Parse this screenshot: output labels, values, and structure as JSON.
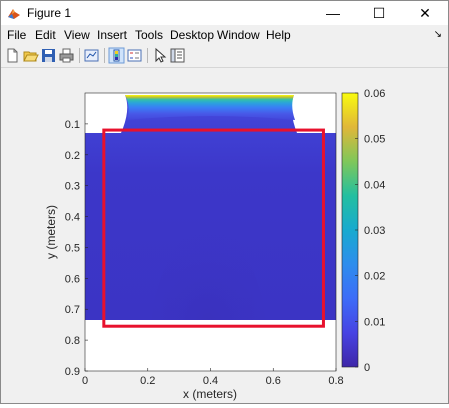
{
  "window": {
    "title": "Figure 1",
    "controls": {
      "minimize": "—",
      "maximize": "☐",
      "close": "✕"
    }
  },
  "menu": {
    "items": [
      "File",
      "Edit",
      "View",
      "Insert",
      "Tools",
      "Desktop",
      "Window",
      "Help"
    ],
    "dock_arrow": "↘"
  },
  "toolbar": {
    "icons": [
      "new-figure-icon",
      "open-file-icon",
      "save-icon",
      "print-icon",
      "link-plot-icon",
      "insert-colorbar-icon",
      "insert-legend-icon",
      "edit-plot-icon",
      "property-inspector-icon"
    ]
  },
  "chart_data": {
    "type": "heatmap",
    "xlabel": "x (meters)",
    "ylabel": "y (meters)",
    "xlim": [
      0,
      0.8
    ],
    "ylim": [
      0.9,
      0
    ],
    "x_ticks": [
      "0",
      "0.2",
      "0.4",
      "0.6",
      "0.8"
    ],
    "y_ticks": [
      "0.1",
      "0.2",
      "0.3",
      "0.4",
      "0.5",
      "0.6",
      "0.7",
      "0.8",
      "0.9"
    ],
    "colorbar": {
      "min": 0,
      "max": 0.06,
      "ticks": [
        "0",
        "0.01",
        "0.02",
        "0.03",
        "0.04",
        "0.05",
        "0.06"
      ],
      "colormap": "parula"
    },
    "highlight_rect": {
      "x0": 0.06,
      "x1": 0.76,
      "y0": 0.12,
      "y1": 0.755,
      "color": "#e8112d"
    },
    "colors": {
      "background_field": "#3d35c8",
      "high": "#f9fb0e",
      "low": "#3e26a8"
    }
  }
}
